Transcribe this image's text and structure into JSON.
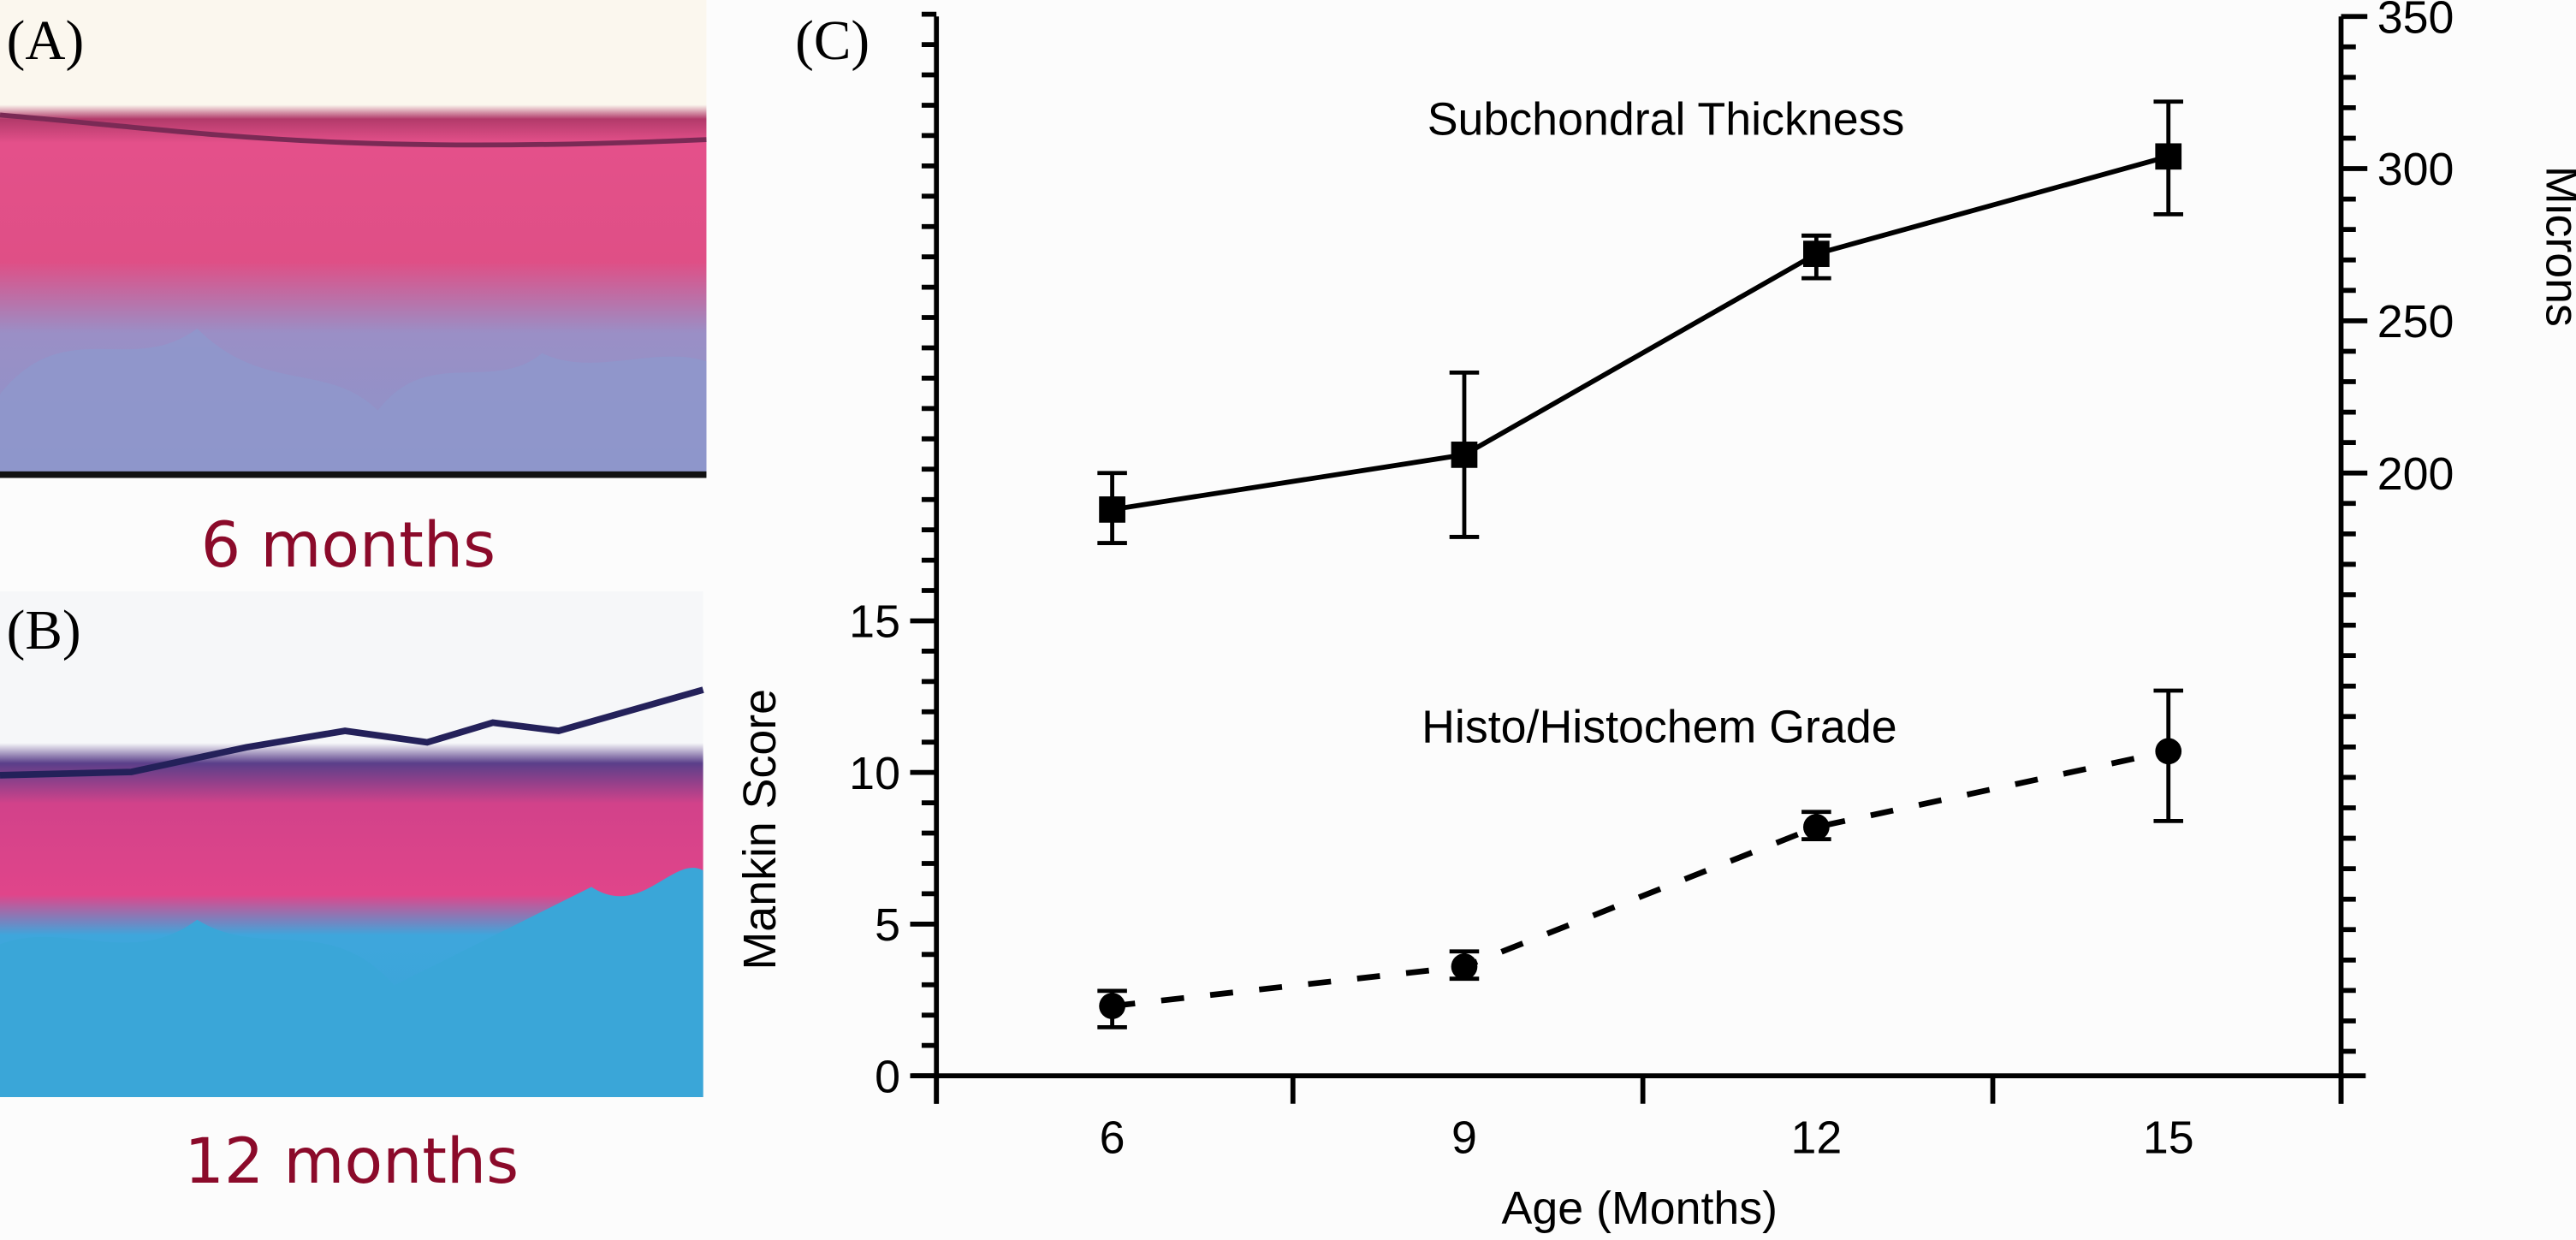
{
  "panels": {
    "A": {
      "label": "(A)",
      "caption": "6 months"
    },
    "B": {
      "label": "(B)",
      "caption": "12 months"
    },
    "C": {
      "label": "(C)"
    }
  },
  "colors": {
    "caption": "#8b0a2a",
    "cartilage_pink": "#e0457e",
    "bone_lavender": "#8f97cc",
    "bone_cyan": "#3aa6d8",
    "line": "#000000"
  },
  "chart_data": {
    "type": "line",
    "title": "",
    "xlabel": "Age (Months)",
    "x": [
      6,
      9,
      12,
      15
    ],
    "x_tick_labels": [
      "6",
      "9",
      "12",
      "15"
    ],
    "grid": false,
    "axes": {
      "left": {
        "label": "Mankin Score",
        "range": [
          0,
          15
        ],
        "ticks": [
          0,
          5,
          10,
          15
        ],
        "tick_labels": [
          "0",
          "5",
          "10",
          "15"
        ]
      },
      "right": {
        "label": "Microns",
        "range": [
          200,
          350
        ],
        "ticks": [
          200,
          250,
          300,
          350
        ],
        "tick_labels": [
          "200",
          "250",
          "300",
          "350"
        ]
      }
    },
    "series": [
      {
        "name": "Subchondral Thickness",
        "axis": "right",
        "marker": "square",
        "line_style": "solid",
        "values": [
          188,
          206,
          272,
          304
        ],
        "error_low": [
          177,
          179,
          264,
          285
        ],
        "error_high": [
          200,
          233,
          278,
          322
        ]
      },
      {
        "name": "Histo/Histochem Grade",
        "axis": "left",
        "marker": "circle",
        "line_style": "dashed",
        "values": [
          2.3,
          3.6,
          8.2,
          10.7
        ],
        "error_low": [
          1.6,
          3.2,
          7.8,
          8.4
        ],
        "error_high": [
          2.8,
          4.1,
          8.7,
          12.7
        ]
      }
    ]
  }
}
